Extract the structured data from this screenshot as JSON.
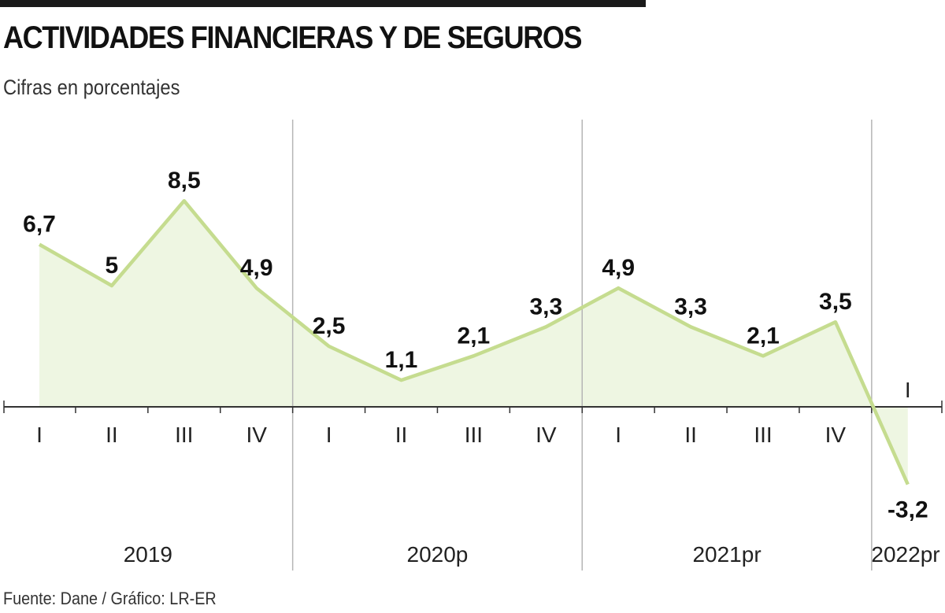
{
  "header": {
    "title": "ACTIVIDADES FINANCIERAS Y DE SEGUROS",
    "subtitle": "Cifras en porcentajes"
  },
  "footer": {
    "source": "Fuente: Dane / Gráfico: LR-ER"
  },
  "colors": {
    "line": "#c5dc8f",
    "fill": "#eef6e2",
    "axis": "#333333",
    "separator": "#b5b5b5",
    "text": "#111111"
  },
  "chart_data": {
    "type": "area",
    "title": "ACTIVIDADES FINANCIERAS Y DE SEGUROS",
    "subtitle": "Cifras en porcentajes",
    "categories": [
      "I",
      "II",
      "III",
      "IV",
      "I",
      "II",
      "III",
      "IV",
      "I",
      "II",
      "III",
      "IV",
      "I"
    ],
    "groups": [
      {
        "label": "2019",
        "quarters": 4
      },
      {
        "label": "2020p",
        "quarters": 4
      },
      {
        "label": "2021pr",
        "quarters": 4
      },
      {
        "label": "2022pr",
        "quarters": 1
      }
    ],
    "values": [
      6.7,
      5,
      8.5,
      4.9,
      2.5,
      1.1,
      2.1,
      3.3,
      4.9,
      3.3,
      2.1,
      3.5,
      -3.2
    ],
    "value_labels": [
      "6,7",
      "5",
      "8,5",
      "4,9",
      "2,5",
      "1,1",
      "2,1",
      "3,3",
      "4,9",
      "3,3",
      "2,1",
      "3,5",
      "-3,2"
    ],
    "grid": false,
    "legend": "none"
  }
}
